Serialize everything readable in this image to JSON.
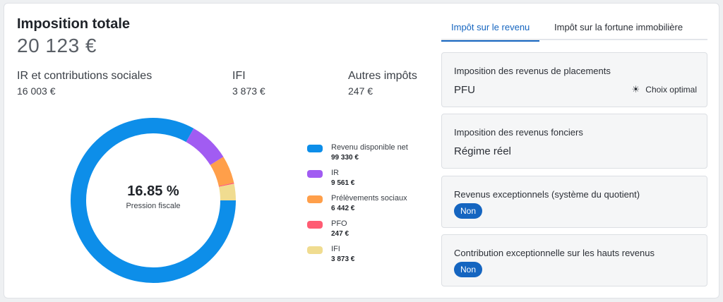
{
  "header": {
    "title": "Imposition totale",
    "total": "20 123 €"
  },
  "summary": [
    {
      "label": "IR et contributions sociales",
      "value": "16 003 €"
    },
    {
      "label": "IFI",
      "value": "3 873 €"
    },
    {
      "label": "Autres impôts",
      "value": "247 €"
    }
  ],
  "chart_data": {
    "type": "pie",
    "title": "",
    "center_value": "16.85 %",
    "center_label": "Pression fiscale",
    "categories": [
      "Revenu disponible net",
      "IR",
      "Prélèvements sociaux",
      "PFO",
      "IFI"
    ],
    "values": [
      99330,
      9561,
      6442,
      247,
      3873
    ],
    "value_labels": [
      "99 330 €",
      "9 561 €",
      "6 442 €",
      "247 €",
      "3 873 €"
    ],
    "colors": [
      "#0d8ee9",
      "#a15cf2",
      "#ff9f4a",
      "#ff5c73",
      "#f0dc90"
    ],
    "legend": "right"
  },
  "tabs": [
    {
      "label": "Impôt sur le revenu",
      "active": true
    },
    {
      "label": "Impôt sur la fortune immobilière",
      "active": false
    }
  ],
  "panels": {
    "placements": {
      "title": "Imposition des revenus de placements",
      "value": "PFU",
      "optimal_label": "Choix optimal",
      "optimal_icon": "sun-icon"
    },
    "fonciers": {
      "title": "Imposition des revenus fonciers",
      "value": "Régime réel"
    },
    "exceptionnels": {
      "title": "Revenus exceptionnels (système du quotient)",
      "toggle_label": "Non"
    },
    "hauts_revenus": {
      "title": "Contribution exceptionnelle sur les hauts revenus",
      "toggle_label": "Non"
    }
  },
  "colors": {
    "accent": "#1565c0",
    "panel_bg": "#f5f6f7"
  }
}
